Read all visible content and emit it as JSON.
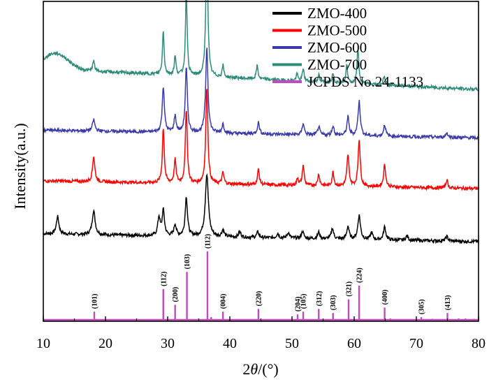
{
  "chart_data": {
    "type": "line",
    "xlabel": "2θ/(°)",
    "ylabel": "Intensity(a.u.)",
    "xlim": [
      10,
      80
    ],
    "x_ticks": [
      "10",
      "20",
      "30",
      "40",
      "50",
      "60",
      "70",
      "80"
    ],
    "legend_position": "top-right",
    "series": [
      {
        "name": "ZMO-400",
        "color": "#000000",
        "baseline": 1.0,
        "peaks": [
          {
            "x": 12.3,
            "h": 0.38,
            "w": 0.25
          },
          {
            "x": 18.1,
            "h": 0.52,
            "w": 0.28
          },
          {
            "x": 28.6,
            "h": 0.4,
            "w": 0.22
          },
          {
            "x": 29.3,
            "h": 0.55,
            "w": 0.22
          },
          {
            "x": 31.2,
            "h": 0.25,
            "w": 0.22
          },
          {
            "x": 33.0,
            "h": 0.85,
            "w": 0.22
          },
          {
            "x": 36.3,
            "h": 1.35,
            "w": 0.3
          },
          {
            "x": 38.9,
            "h": 0.15,
            "w": 0.22
          },
          {
            "x": 41.6,
            "h": 0.12,
            "w": 0.22
          },
          {
            "x": 44.5,
            "h": 0.12,
            "w": 0.22
          },
          {
            "x": 47.7,
            "h": 0.1,
            "w": 0.22
          },
          {
            "x": 49.4,
            "h": 0.12,
            "w": 0.22
          },
          {
            "x": 51.7,
            "h": 0.15,
            "w": 0.22
          },
          {
            "x": 54.3,
            "h": 0.14,
            "w": 0.22
          },
          {
            "x": 56.5,
            "h": 0.23,
            "w": 0.22
          },
          {
            "x": 59.0,
            "h": 0.28,
            "w": 0.22
          },
          {
            "x": 60.8,
            "h": 0.52,
            "w": 0.25
          },
          {
            "x": 62.8,
            "h": 0.15,
            "w": 0.22
          },
          {
            "x": 64.9,
            "h": 0.28,
            "w": 0.22
          },
          {
            "x": 68.5,
            "h": 0.1,
            "w": 0.22
          },
          {
            "x": 74.9,
            "h": 0.1,
            "w": 0.22
          }
        ]
      },
      {
        "name": "ZMO-500",
        "color": "#ff0000",
        "baseline": 2.15,
        "peaks": [
          {
            "x": 18.1,
            "h": 0.55,
            "w": 0.22
          },
          {
            "x": 29.3,
            "h": 1.2,
            "w": 0.18
          },
          {
            "x": 31.2,
            "h": 0.5,
            "w": 0.18
          },
          {
            "x": 33.0,
            "h": 1.62,
            "w": 0.18
          },
          {
            "x": 36.3,
            "h": 2.1,
            "w": 0.2
          },
          {
            "x": 38.9,
            "h": 0.25,
            "w": 0.18
          },
          {
            "x": 44.6,
            "h": 0.33,
            "w": 0.18
          },
          {
            "x": 50.9,
            "h": 0.15,
            "w": 0.18
          },
          {
            "x": 51.8,
            "h": 0.43,
            "w": 0.18
          },
          {
            "x": 54.3,
            "h": 0.25,
            "w": 0.18
          },
          {
            "x": 56.6,
            "h": 0.3,
            "w": 0.18
          },
          {
            "x": 59.0,
            "h": 0.68,
            "w": 0.2
          },
          {
            "x": 60.8,
            "h": 1.03,
            "w": 0.2
          },
          {
            "x": 64.9,
            "h": 0.48,
            "w": 0.2
          },
          {
            "x": 74.9,
            "h": 0.18,
            "w": 0.18
          }
        ]
      },
      {
        "name": "ZMO-600",
        "color": "#3a3aa8",
        "baseline": 3.25,
        "peaks": [
          {
            "x": 18.1,
            "h": 0.25,
            "w": 0.22
          },
          {
            "x": 29.3,
            "h": 1.0,
            "w": 0.2
          },
          {
            "x": 31.2,
            "h": 0.35,
            "w": 0.2
          },
          {
            "x": 33.0,
            "h": 1.4,
            "w": 0.2
          },
          {
            "x": 36.3,
            "h": 1.85,
            "w": 0.22
          },
          {
            "x": 38.9,
            "h": 0.2,
            "w": 0.2
          },
          {
            "x": 44.6,
            "h": 0.25,
            "w": 0.2
          },
          {
            "x": 51.8,
            "h": 0.25,
            "w": 0.2
          },
          {
            "x": 54.3,
            "h": 0.18,
            "w": 0.2
          },
          {
            "x": 56.6,
            "h": 0.2,
            "w": 0.2
          },
          {
            "x": 59.0,
            "h": 0.4,
            "w": 0.2
          },
          {
            "x": 60.8,
            "h": 0.75,
            "w": 0.22
          },
          {
            "x": 64.9,
            "h": 0.25,
            "w": 0.2
          },
          {
            "x": 74.9,
            "h": 0.1,
            "w": 0.2
          }
        ]
      },
      {
        "name": "ZMO-700",
        "color": "#2e8b7a",
        "baseline": 4.5,
        "peaks": [
          {
            "x": 18.1,
            "h": 0.22,
            "w": 0.18
          },
          {
            "x": 29.3,
            "h": 0.95,
            "w": 0.16
          },
          {
            "x": 31.2,
            "h": 0.4,
            "w": 0.16
          },
          {
            "x": 33.0,
            "h": 1.85,
            "w": 0.16
          },
          {
            "x": 36.3,
            "h": 3.12,
            "w": 0.18
          },
          {
            "x": 38.9,
            "h": 0.25,
            "w": 0.16
          },
          {
            "x": 44.4,
            "h": 0.3,
            "w": 0.16
          },
          {
            "x": 50.8,
            "h": 0.15,
            "w": 0.16
          },
          {
            "x": 51.8,
            "h": 0.28,
            "w": 0.16
          },
          {
            "x": 54.3,
            "h": 0.15,
            "w": 0.16
          },
          {
            "x": 56.6,
            "h": 0.22,
            "w": 0.16
          },
          {
            "x": 58.8,
            "h": 0.4,
            "w": 0.16
          },
          {
            "x": 60.6,
            "h": 0.75,
            "w": 0.18
          },
          {
            "x": 64.8,
            "h": 0.2,
            "w": 0.16
          }
        ]
      },
      {
        "name": "JCPDS No.24-1133",
        "color": "#c04bc0",
        "type": "stick",
        "lines": [
          {
            "x": 18.2,
            "h": 12,
            "label": "(101)"
          },
          {
            "x": 29.3,
            "h": 45,
            "label": "(112)"
          },
          {
            "x": 31.2,
            "h": 22,
            "label": "(200)"
          },
          {
            "x": 33.1,
            "h": 70,
            "label": "(103)"
          },
          {
            "x": 36.4,
            "h": 100,
            "label": "(112)"
          },
          {
            "x": 38.9,
            "h": 12,
            "label": "(004)"
          },
          {
            "x": 44.6,
            "h": 16,
            "label": "(220)"
          },
          {
            "x": 50.9,
            "h": 8,
            "label": "(204)"
          },
          {
            "x": 51.8,
            "h": 12,
            "label": "(105)"
          },
          {
            "x": 54.3,
            "h": 16,
            "label": "(312)"
          },
          {
            "x": 56.6,
            "h": 10,
            "label": "(303)"
          },
          {
            "x": 59.1,
            "h": 30,
            "label": "(321)"
          },
          {
            "x": 60.8,
            "h": 50,
            "label": "(224)"
          },
          {
            "x": 64.9,
            "h": 18,
            "label": "(400)"
          },
          {
            "x": 70.8,
            "h": 4,
            "label": "(305)"
          },
          {
            "x": 75.0,
            "h": 10,
            "label": "(413)"
          },
          {
            "x": 37.0,
            "h": 4,
            "label": ""
          },
          {
            "x": 65.8,
            "h": 2,
            "label": ""
          },
          {
            "x": 72.6,
            "h": 1.5,
            "label": ""
          },
          {
            "x": 76.8,
            "h": 2,
            "label": ""
          },
          {
            "x": 77.9,
            "h": 2,
            "label": ""
          },
          {
            "x": 79.3,
            "h": 1.5,
            "label": ""
          }
        ]
      }
    ]
  }
}
